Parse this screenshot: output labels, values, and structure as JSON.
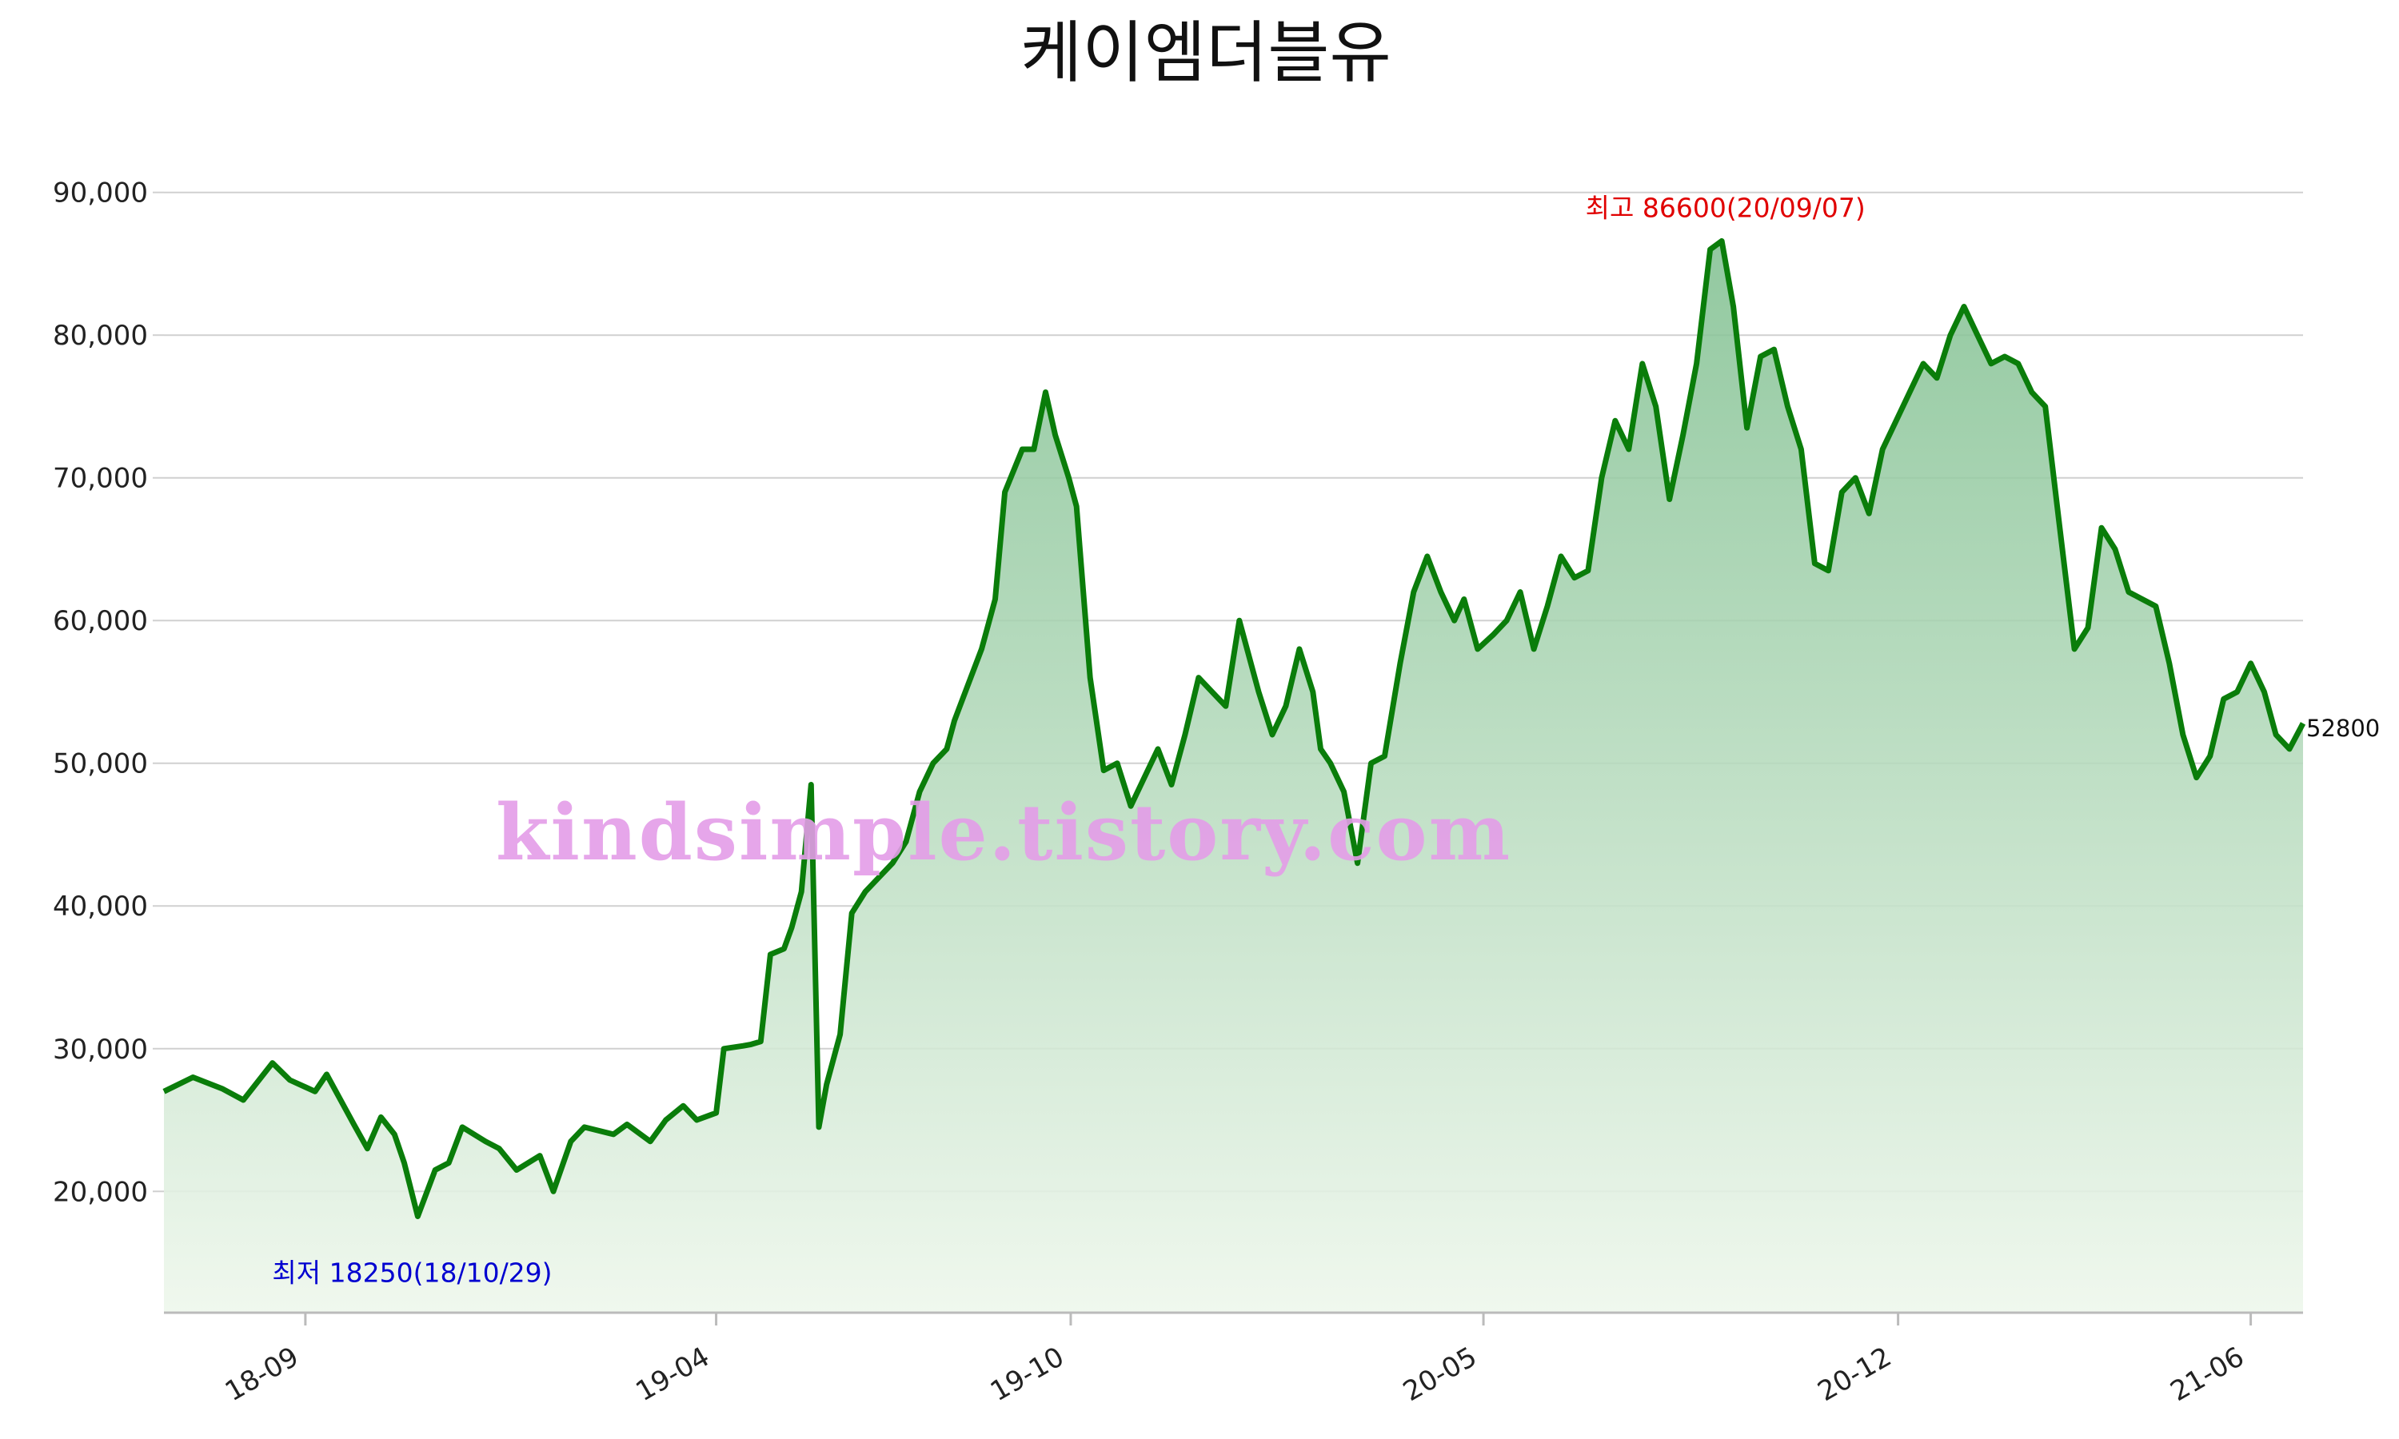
{
  "title": "케이엠더블유",
  "watermark": "kindsimple.tistory.com",
  "colors": {
    "line": "#0a7d0a",
    "area_top": "#7fbf8f",
    "area_bottom": "#eef7ec",
    "high_text": "#e00000",
    "low_text": "#0000d0"
  },
  "annotations": {
    "high": "최고 86600(20/09/07)",
    "low": "최저 18250(18/10/29)",
    "last": "52800"
  },
  "chart_data": {
    "type": "area",
    "title": "케이엠더블유",
    "xlabel": "",
    "ylabel": "",
    "ylim": [
      11500,
      92000
    ],
    "y_ticks": [
      20000,
      30000,
      40000,
      50000,
      60000,
      70000,
      80000,
      90000
    ],
    "y_tick_labels": [
      "20,000",
      "30,000",
      "40,000",
      "50,000",
      "60,000",
      "70,000",
      "80,000",
      "90,000"
    ],
    "x_ticks": [
      "2018-09-01",
      "2019-04-01",
      "2019-10-01",
      "2020-05-01",
      "2020-12-01",
      "2021-06-01"
    ],
    "x_tick_labels": [
      "18-09",
      "19-04",
      "19-10",
      "20-05",
      "20-12",
      "21-06"
    ],
    "xlim": [
      "2018-06-20",
      "2021-06-28"
    ],
    "grid": "horizontal",
    "series": [
      {
        "x": [
          "2018-06-20",
          "2018-07-05",
          "2018-07-20",
          "2018-07-31",
          "2018-08-15",
          "2018-08-24",
          "2018-09-06",
          "2018-09-12",
          "2018-09-26",
          "2018-10-03",
          "2018-10-10",
          "2018-10-17",
          "2018-10-22",
          "2018-10-29",
          "2018-11-07",
          "2018-11-14",
          "2018-11-21",
          "2018-12-03",
          "2018-12-10",
          "2018-12-19",
          "2018-12-31",
          "2019-01-07",
          "2019-01-16",
          "2019-01-23",
          "2019-02-07",
          "2019-02-14",
          "2019-02-26",
          "2019-03-06",
          "2019-03-15",
          "2019-03-22",
          "2019-04-01",
          "2019-04-05",
          "2019-04-15",
          "2019-04-19",
          "2019-04-24",
          "2019-04-29",
          "2019-05-06",
          "2019-05-10",
          "2019-05-15",
          "2019-05-20",
          "2019-05-24",
          "2019-05-28",
          "2019-06-04",
          "2019-06-10",
          "2019-06-17",
          "2019-06-24",
          "2019-07-01",
          "2019-07-08",
          "2019-07-15",
          "2019-07-22",
          "2019-07-29",
          "2019-08-02",
          "2019-08-09",
          "2019-08-16",
          "2019-08-23",
          "2019-08-28",
          "2019-09-06",
          "2019-09-12",
          "2019-09-18",
          "2019-09-23",
          "2019-09-30",
          "2019-10-04",
          "2019-10-11",
          "2019-10-18",
          "2019-10-25",
          "2019-11-01",
          "2019-11-08",
          "2019-11-15",
          "2019-11-22",
          "2019-11-29",
          "2019-12-06",
          "2019-12-13",
          "2019-12-20",
          "2019-12-27",
          "2020-01-06",
          "2020-01-13",
          "2020-01-20",
          "2020-01-27",
          "2020-02-03",
          "2020-02-07",
          "2020-02-12",
          "2020-02-19",
          "2020-02-26",
          "2020-03-04",
          "2020-03-11",
          "2020-03-19",
          "2020-03-26",
          "2020-04-02",
          "2020-04-09",
          "2020-04-16",
          "2020-04-21",
          "2020-04-28",
          "2020-05-06",
          "2020-05-13",
          "2020-05-20",
          "2020-05-27",
          "2020-06-03",
          "2020-06-10",
          "2020-06-17",
          "2020-06-24",
          "2020-07-01",
          "2020-07-08",
          "2020-07-15",
          "2020-07-22",
          "2020-07-29",
          "2020-08-05",
          "2020-08-12",
          "2020-08-19",
          "2020-08-26",
          "2020-09-01",
          "2020-09-07",
          "2020-09-14",
          "2020-09-21",
          "2020-09-28",
          "2020-10-05",
          "2020-10-12",
          "2020-10-19",
          "2020-10-26",
          "2020-11-02",
          "2020-11-09",
          "2020-11-16",
          "2020-11-23",
          "2020-11-30",
          "2020-12-07",
          "2020-12-14",
          "2020-12-21",
          "2020-12-28",
          "2021-01-04",
          "2021-01-11",
          "2021-01-18",
          "2021-01-25",
          "2021-02-01",
          "2021-02-08",
          "2021-02-15",
          "2021-02-22",
          "2021-03-02",
          "2021-03-09",
          "2021-03-16",
          "2021-03-23",
          "2021-03-30",
          "2021-04-06",
          "2021-04-13",
          "2021-04-20",
          "2021-04-27",
          "2021-05-04",
          "2021-05-11",
          "2021-05-18",
          "2021-05-25",
          "2021-06-01",
          "2021-06-08",
          "2021-06-14",
          "2021-06-21",
          "2021-06-28"
        ],
        "values": [
          27000,
          28000,
          27200,
          26400,
          29000,
          27800,
          27000,
          28200,
          24700,
          23000,
          25200,
          24000,
          22000,
          18250,
          21500,
          22000,
          24500,
          23500,
          23000,
          21500,
          22500,
          20000,
          23500,
          24500,
          24000,
          24700,
          23500,
          25000,
          26000,
          25000,
          25500,
          30000,
          30200,
          30300,
          30500,
          36600,
          37000,
          38500,
          41000,
          48500,
          24500,
          27500,
          31000,
          39500,
          41000,
          42000,
          43000,
          44500,
          48000,
          50000,
          51000,
          53000,
          55500,
          58000,
          61500,
          69000,
          72000,
          72000,
          76000,
          73000,
          70000,
          68000,
          56000,
          49500,
          50000,
          47000,
          49000,
          51000,
          48500,
          52000,
          56000,
          55000,
          54000,
          60000,
          55000,
          52000,
          54000,
          58000,
          55000,
          51000,
          50000,
          48000,
          43000,
          50000,
          50500,
          57000,
          62000,
          64500,
          62000,
          60000,
          61500,
          58000,
          59000,
          60000,
          62000,
          58000,
          61000,
          64500,
          63000,
          63500,
          70000,
          74000,
          72000,
          78000,
          75000,
          68500,
          73000,
          78000,
          86000,
          86600,
          82000,
          73500,
          78500,
          79000,
          75000,
          72000,
          64000,
          63500,
          69000,
          70000,
          67500,
          72000,
          74000,
          76000,
          78000,
          77000,
          80000,
          82000,
          80000,
          78000,
          78500,
          78000,
          76000,
          75000,
          67000,
          58000,
          59500,
          66500,
          65000,
          62000,
          61500,
          61000,
          57000,
          52000,
          49000,
          50500,
          54500,
          55000,
          57000,
          55000,
          52000,
          51000,
          52800
        ]
      }
    ],
    "high": {
      "value": 86600,
      "date": "2020-09-07"
    },
    "low": {
      "value": 18250,
      "date": "2018-10-29"
    },
    "last": 52800
  }
}
